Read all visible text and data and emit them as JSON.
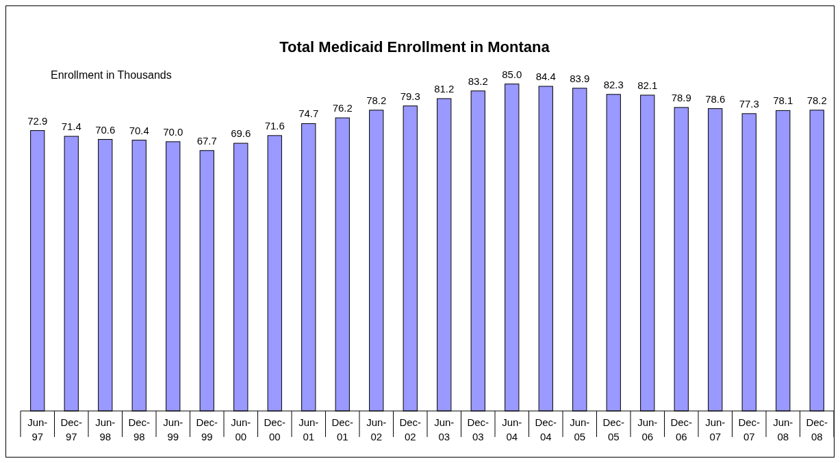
{
  "chart_data": {
    "type": "bar",
    "title": "Total Medicaid Enrollment in Montana",
    "ylabel": "Enrollment in Thousands",
    "categories": [
      "Jun-97",
      "Dec-97",
      "Jun-98",
      "Dec-98",
      "Jun-99",
      "Dec-99",
      "Jun-00",
      "Dec-00",
      "Jun-01",
      "Dec-01",
      "Jun-02",
      "Dec-02",
      "Jun-03",
      "Dec-03",
      "Jun-04",
      "Dec-04",
      "Jun-05",
      "Dec-05",
      "Jun-06",
      "Dec-06",
      "Jun-07",
      "Dec-07",
      "Jun-08",
      "Dec-08"
    ],
    "values": [
      72.9,
      71.4,
      70.6,
      70.4,
      70.0,
      67.7,
      69.6,
      71.6,
      74.7,
      76.2,
      78.2,
      79.3,
      81.2,
      83.2,
      85.0,
      84.4,
      83.9,
      82.3,
      82.1,
      78.9,
      78.6,
      77.3,
      78.1,
      78.2
    ],
    "value_labels": [
      "72.9",
      "71.4",
      "70.6",
      "70.4",
      "70.0",
      "67.7",
      "69.6",
      "71.6",
      "74.7",
      "76.2",
      "78.2",
      "79.3",
      "81.2",
      "83.2",
      "85.0",
      "84.4",
      "83.9",
      "82.3",
      "82.1",
      "78.9",
      "78.6",
      "77.3",
      "78.1",
      "78.2"
    ],
    "color": "#9999ff",
    "tick_labels": "x"
  }
}
